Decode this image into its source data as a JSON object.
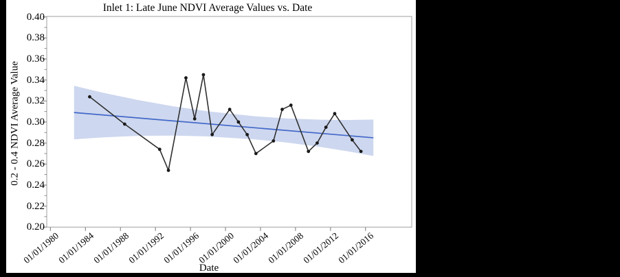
{
  "window": {
    "background_color": "#000000",
    "panel_background_color": "#ffffff"
  },
  "chart_data": {
    "type": "line",
    "title": "Inlet 1: Late June NDVI Average Values vs. Date",
    "xlabel": "Date",
    "ylabel": "0.2 - 0.4 NDVI Average Value",
    "grid": false,
    "legend": null,
    "ylim": [
      0.2,
      0.4
    ],
    "xlim_years": [
      1980,
      2021.3
    ],
    "x_ticks": [
      {
        "year": 1980,
        "label": "01/01/1980"
      },
      {
        "year": 1984,
        "label": "01/01/1984"
      },
      {
        "year": 1988,
        "label": "01/01/1988"
      },
      {
        "year": 1992,
        "label": "01/01/1992"
      },
      {
        "year": 1996,
        "label": "01/01/1996"
      },
      {
        "year": 2000,
        "label": "01/01/2000"
      },
      {
        "year": 2004,
        "label": "01/01/2004"
      },
      {
        "year": 2008,
        "label": "01/01/2008"
      },
      {
        "year": 2012,
        "label": "01/01/2012"
      },
      {
        "year": 2016,
        "label": "01/01/2016"
      }
    ],
    "y_ticks": [
      {
        "value": 0.2,
        "label": "0.20"
      },
      {
        "value": 0.22,
        "label": "0.22"
      },
      {
        "value": 0.24,
        "label": "0.24"
      },
      {
        "value": 0.26,
        "label": "0.26"
      },
      {
        "value": 0.28,
        "label": "0.28"
      },
      {
        "value": 0.3,
        "label": "0.30"
      },
      {
        "value": 0.32,
        "label": "0.32"
      },
      {
        "value": 0.34,
        "label": "0.34"
      },
      {
        "value": 0.36,
        "label": "0.36"
      },
      {
        "value": 0.38,
        "label": "0.38"
      },
      {
        "value": 0.4,
        "label": "0.40"
      }
    ],
    "y_minor_ticks": [
      0.21,
      0.23,
      0.25,
      0.27,
      0.29,
      0.31,
      0.33,
      0.35,
      0.37,
      0.39
    ],
    "series": [
      {
        "name": "Late June NDVI average",
        "color": "#2f2f2f",
        "marker_color": "#1a1a1a",
        "points": [
          {
            "year": 1984,
            "x": 1984.48,
            "value": 0.324
          },
          {
            "year": 1988,
            "x": 1988.48,
            "value": 0.298
          },
          {
            "year": 1992,
            "x": 1992.48,
            "value": 0.274
          },
          {
            "year": 1993,
            "x": 1993.48,
            "value": 0.254
          },
          {
            "year": 1995,
            "x": 1995.48,
            "value": 0.342
          },
          {
            "year": 1996,
            "x": 1996.48,
            "value": 0.303
          },
          {
            "year": 1997,
            "x": 1997.48,
            "value": 0.345
          },
          {
            "year": 1998,
            "x": 1998.48,
            "value": 0.288
          },
          {
            "year": 2000,
            "x": 2000.48,
            "value": 0.312
          },
          {
            "year": 2001,
            "x": 2001.48,
            "value": 0.3
          },
          {
            "year": 2002,
            "x": 2002.48,
            "value": 0.288
          },
          {
            "year": 2003,
            "x": 2003.48,
            "value": 0.27
          },
          {
            "year": 2005,
            "x": 2005.48,
            "value": 0.282
          },
          {
            "year": 2006,
            "x": 2006.48,
            "value": 0.312
          },
          {
            "year": 2007,
            "x": 2007.48,
            "value": 0.316
          },
          {
            "year": 2009,
            "x": 2009.48,
            "value": 0.272
          },
          {
            "year": 2010,
            "x": 2010.48,
            "value": 0.28
          },
          {
            "year": 2011,
            "x": 2011.48,
            "value": 0.295
          },
          {
            "year": 2012,
            "x": 2012.48,
            "value": 0.308
          },
          {
            "year": 2014,
            "x": 2014.48,
            "value": 0.283
          },
          {
            "year": 2015,
            "x": 2015.48,
            "value": 0.272
          }
        ]
      }
    ],
    "trend_line": {
      "color": "#4268c8",
      "start": {
        "x": 1982.7,
        "value": 0.309
      },
      "end": {
        "x": 2016.9,
        "value": 0.285
      }
    },
    "confidence_band": {
      "color": "#cdd7ef",
      "stations": [
        {
          "x": 1982.7,
          "bottom": 0.2835,
          "top": 0.3345
        },
        {
          "x": 1986.0,
          "bottom": 0.2854,
          "top": 0.3279
        },
        {
          "x": 1990.0,
          "bottom": 0.2868,
          "top": 0.3209
        },
        {
          "x": 1994.0,
          "bottom": 0.2871,
          "top": 0.315
        },
        {
          "x": 1998.0,
          "bottom": 0.2863,
          "top": 0.3102
        },
        {
          "x": 2003.3,
          "bottom": 0.2835,
          "top": 0.3055
        },
        {
          "x": 2007.0,
          "bottom": 0.2805,
          "top": 0.3034
        },
        {
          "x": 2011.0,
          "bottom": 0.2761,
          "top": 0.3022
        },
        {
          "x": 2014.0,
          "bottom": 0.2721,
          "top": 0.3019
        },
        {
          "x": 2016.9,
          "bottom": 0.2677,
          "top": 0.3023
        }
      ]
    },
    "frame_color": "#b5b5b5",
    "tick_color": "#8c8c8c"
  }
}
